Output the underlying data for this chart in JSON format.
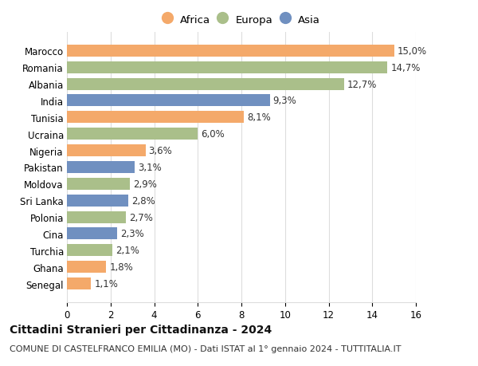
{
  "countries": [
    "Marocco",
    "Romania",
    "Albania",
    "India",
    "Tunisia",
    "Ucraina",
    "Nigeria",
    "Pakistan",
    "Moldova",
    "Sri Lanka",
    "Polonia",
    "Cina",
    "Turchia",
    "Ghana",
    "Senegal"
  ],
  "values": [
    15.0,
    14.7,
    12.7,
    9.3,
    8.1,
    6.0,
    3.6,
    3.1,
    2.9,
    2.8,
    2.7,
    2.3,
    2.1,
    1.8,
    1.1
  ],
  "continents": [
    "Africa",
    "Europa",
    "Europa",
    "Asia",
    "Africa",
    "Europa",
    "Africa",
    "Asia",
    "Europa",
    "Asia",
    "Europa",
    "Asia",
    "Europa",
    "Africa",
    "Africa"
  ],
  "colors": {
    "Africa": "#F4A96A",
    "Europa": "#AABF8A",
    "Asia": "#7090C0"
  },
  "legend_labels": [
    "Africa",
    "Europa",
    "Asia"
  ],
  "title": "Cittadini Stranieri per Cittadinanza - 2024",
  "subtitle": "COMUNE DI CASTELFRANCO EMILIA (MO) - Dati ISTAT al 1° gennaio 2024 - TUTTITALIA.IT",
  "xlim": [
    0,
    16
  ],
  "xticks": [
    0,
    2,
    4,
    6,
    8,
    10,
    12,
    14,
    16
  ],
  "background_color": "#ffffff",
  "bar_height": 0.72,
  "label_fontsize": 8.5,
  "title_fontsize": 10,
  "subtitle_fontsize": 8,
  "tick_fontsize": 8.5,
  "ytick_fontsize": 8.5,
  "grid_color": "#dddddd"
}
